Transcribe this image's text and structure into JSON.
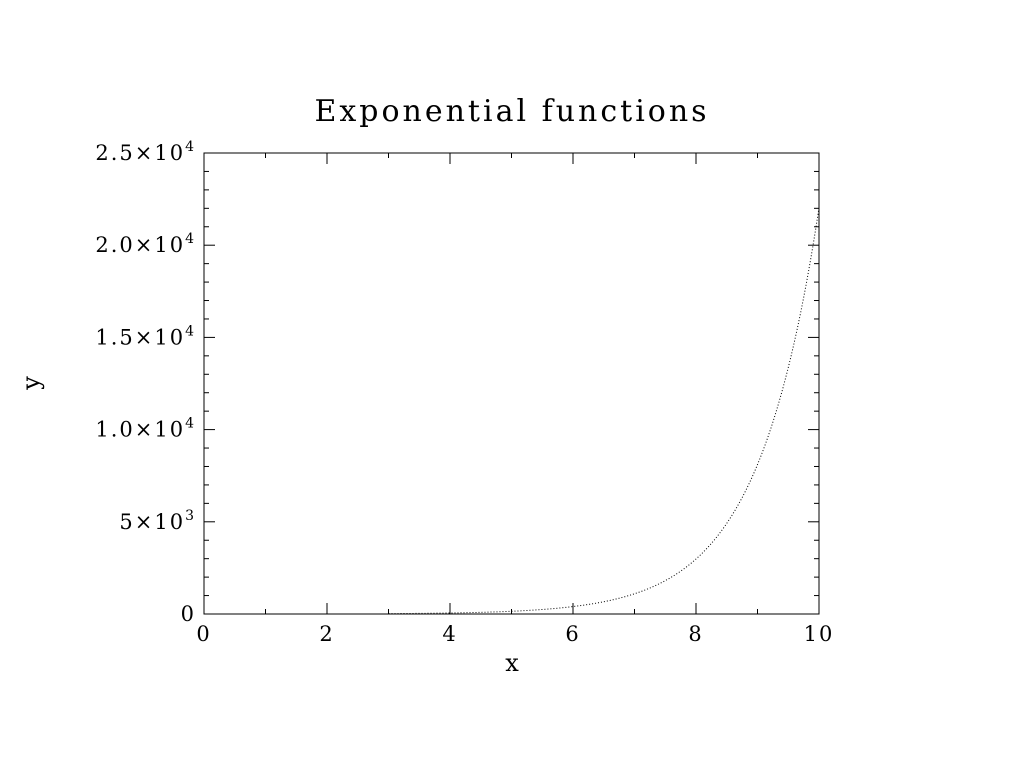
{
  "chart_data": {
    "type": "line",
    "title": "Exponential functions",
    "xlabel": "x",
    "ylabel": "y",
    "xlim": [
      0,
      10
    ],
    "ylim": [
      0,
      25000
    ],
    "grid": false,
    "x_ticks": [
      {
        "value": 0,
        "label": "0"
      },
      {
        "value": 2,
        "label": "2"
      },
      {
        "value": 4,
        "label": "4"
      },
      {
        "value": 6,
        "label": "6"
      },
      {
        "value": 8,
        "label": "8"
      },
      {
        "value": 10,
        "label": "10"
      }
    ],
    "y_ticks": [
      {
        "value": 0,
        "mantissa": "0",
        "exponent": ""
      },
      {
        "value": 5000,
        "mantissa": "5×10",
        "exponent": "3"
      },
      {
        "value": 10000,
        "mantissa": "1.0×10",
        "exponent": "4"
      },
      {
        "value": 15000,
        "mantissa": "1.5×10",
        "exponent": "4"
      },
      {
        "value": 20000,
        "mantissa": "2.0×10",
        "exponent": "4"
      },
      {
        "value": 25000,
        "mantissa": "2.5×10",
        "exponent": "4"
      }
    ],
    "series": [
      {
        "line_style": "dotted",
        "x": [
          3,
          3.5,
          4,
          4.5,
          5,
          5.5,
          6,
          6.5,
          7,
          7.5,
          8,
          8.5,
          9,
          9.5,
          10
        ],
        "y": [
          20,
          33,
          55,
          90,
          148,
          245,
          403,
          665,
          1097,
          1808,
          2981,
          4915,
          8103,
          13360,
          22026
        ]
      }
    ]
  }
}
